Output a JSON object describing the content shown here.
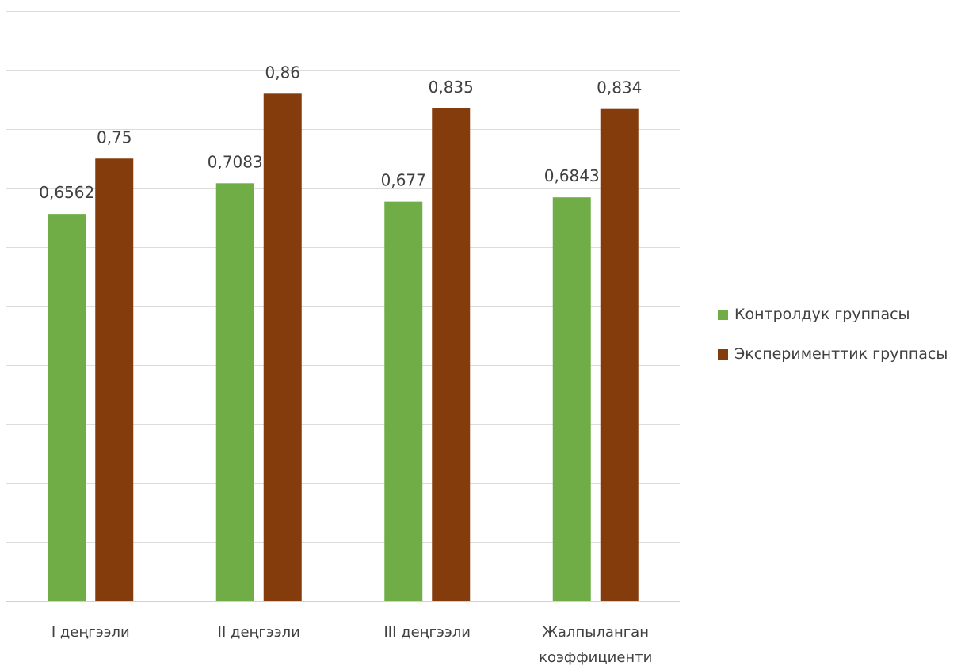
{
  "chart_data": {
    "type": "bar",
    "categories": [
      [
        "I деңгээли"
      ],
      [
        "II деңгээли"
      ],
      [
        "III деңгээли"
      ],
      [
        "Жалпыланган",
        "коэффициенти"
      ]
    ],
    "series": [
      {
        "name": "Контролдук группасы",
        "color": "#70ad47",
        "values": [
          0.6562,
          0.7083,
          0.677,
          0.6843
        ],
        "labels": [
          "0,6562",
          "0,7083",
          "0,677",
          "0,6843"
        ]
      },
      {
        "name": "Эксперименттик группасы",
        "color": "#843c0c",
        "values": [
          0.75,
          0.86,
          0.835,
          0.834
        ],
        "labels": [
          "0,75",
          "0,86",
          "0,835",
          "0,834"
        ]
      }
    ],
    "ylim": [
      0,
      1
    ],
    "grid": true,
    "legend_position": "right"
  }
}
